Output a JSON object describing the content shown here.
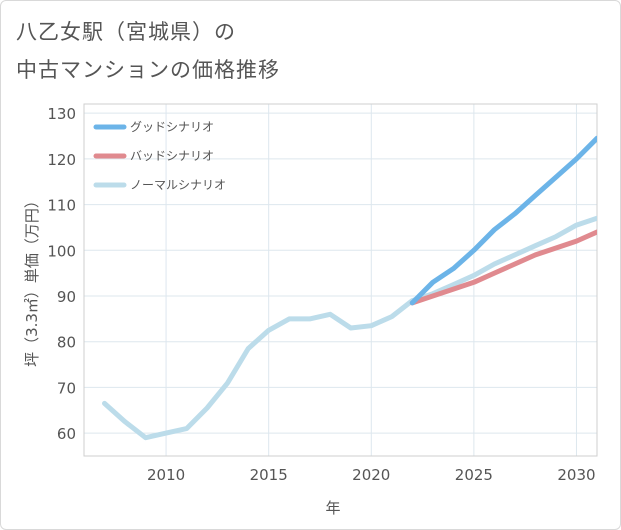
{
  "title": {
    "line1": "八乙女駅（宮城県）の",
    "line2": "中古マンションの価格推移"
  },
  "chart_data": {
    "type": "line",
    "xlabel": "年",
    "ylabel": "坪（3.3㎡）単価（万円）",
    "xlim": [
      2006,
      2031
    ],
    "ylim": [
      55,
      132
    ],
    "x_ticks": [
      2010,
      2015,
      2020,
      2025,
      2030
    ],
    "y_ticks": [
      60,
      70,
      80,
      90,
      100,
      110,
      120,
      130
    ],
    "grid": true,
    "legend_position": "top-left",
    "series": [
      {
        "name": "グッドシナリオ",
        "color": "#6cb4e8",
        "x": [
          2022,
          2023,
          2024,
          2025,
          2026,
          2027,
          2028,
          2029,
          2030,
          2031
        ],
        "values": [
          88.5,
          93,
          96,
          100,
          104.5,
          108,
          112,
          116,
          120,
          124.5
        ]
      },
      {
        "name": "バッドシナリオ",
        "color": "#e08a8f",
        "x": [
          2022,
          2023,
          2024,
          2025,
          2026,
          2027,
          2028,
          2029,
          2030,
          2031
        ],
        "values": [
          88.5,
          90,
          91.5,
          93,
          95,
          97,
          99,
          100.5,
          102,
          104
        ]
      },
      {
        "name": "ノーマルシナリオ",
        "color": "#bcdcea",
        "x": [
          2007,
          2008,
          2009,
          2010,
          2011,
          2012,
          2013,
          2014,
          2015,
          2016,
          2017,
          2018,
          2019,
          2020,
          2021,
          2022,
          2023,
          2024,
          2025,
          2026,
          2027,
          2028,
          2029,
          2030,
          2031
        ],
        "values": [
          66.5,
          62.5,
          59,
          60,
          61,
          65.5,
          71,
          78.5,
          82.5,
          85,
          85,
          86,
          83,
          83.5,
          85.5,
          89,
          90.5,
          92.5,
          94.5,
          97,
          99,
          101,
          103,
          105.5,
          107
        ]
      }
    ]
  }
}
